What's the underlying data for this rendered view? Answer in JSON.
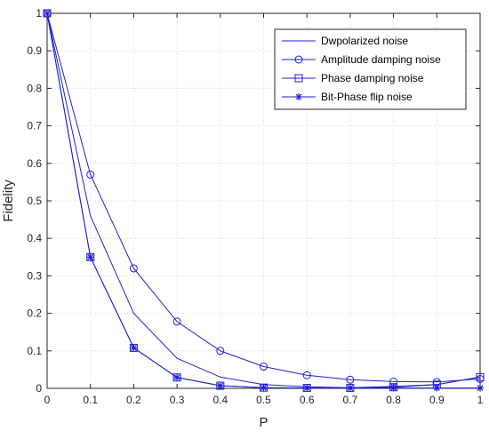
{
  "chart_data": {
    "type": "line",
    "title": "",
    "xlabel": "P",
    "ylabel": "Fidelity",
    "xlim": [
      0,
      1
    ],
    "ylim": [
      0,
      1
    ],
    "grid": true,
    "legend_position": "top-right",
    "x_ticks": [
      "0",
      "0.1",
      "0.2",
      "0.3",
      "0.4",
      "0.5",
      "0.6",
      "0.7",
      "0.8",
      "0.9",
      "1"
    ],
    "y_ticks": [
      "0",
      "0.1",
      "0.2",
      "0.3",
      "0.4",
      "0.5",
      "0.6",
      "0.7",
      "0.8",
      "0.9",
      "1"
    ],
    "x": [
      0,
      0.1,
      0.2,
      0.3,
      0.4,
      0.5,
      0.6,
      0.7,
      0.8,
      0.9,
      1
    ],
    "line_color": "#1f1fd4",
    "series": [
      {
        "name": "Dwpolarized noise",
        "marker": "none",
        "values": [
          1,
          0.46,
          0.2,
          0.08,
          0.03,
          0.01,
          0.004,
          0.002,
          0.005,
          0.01,
          0.03
        ]
      },
      {
        "name": "Amplitude damping noise",
        "marker": "circle",
        "values": [
          1,
          0.57,
          0.32,
          0.178,
          0.1,
          0.058,
          0.035,
          0.023,
          0.018,
          0.017,
          0.025
        ]
      },
      {
        "name": "Phase damping noise",
        "marker": "square",
        "values": [
          1,
          0.35,
          0.108,
          0.029,
          0.007,
          0.002,
          0.001,
          0.001,
          0.003,
          0.01,
          0.03
        ]
      },
      {
        "name": "Bit-Phase flip noise",
        "marker": "asterisk",
        "values": [
          1,
          0.35,
          0.108,
          0.029,
          0.007,
          0.002,
          0.001,
          0.001,
          0.001,
          0.001,
          0.001
        ]
      }
    ]
  }
}
